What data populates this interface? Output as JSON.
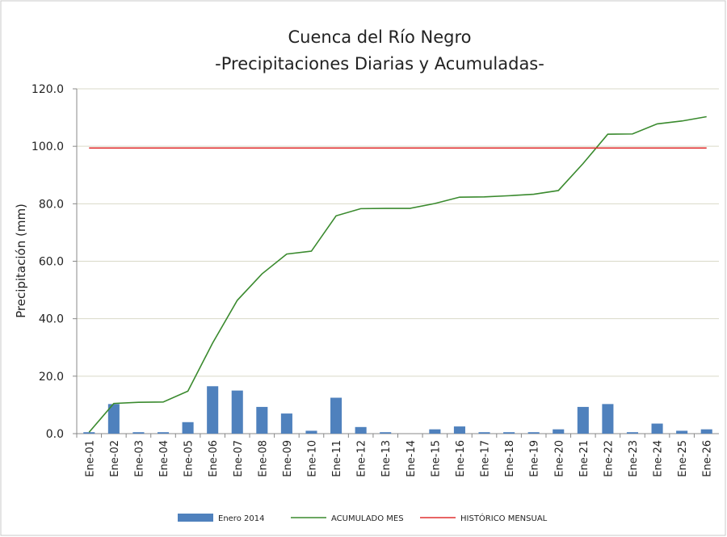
{
  "chart_data": {
    "type": "bar-line",
    "title": "Cuenca del Río Negro",
    "subtitle": "-Precipitaciones Diarias y Acumuladas-",
    "y_label": "Precipitación (mm)",
    "categories": [
      "Ene-01",
      "Ene-02",
      "Ene-03",
      "Ene-04",
      "Ene-05",
      "Ene-06",
      "Ene-07",
      "Ene-08",
      "Ene-09",
      "Ene-10",
      "Ene-11",
      "Ene-12",
      "Ene-13",
      "Ene-14",
      "Ene-15",
      "Ene-16",
      "Ene-17",
      "Ene-18",
      "Ene-19",
      "Ene-20",
      "Ene-21",
      "Ene-22",
      "Ene-23",
      "Ene-24",
      "Ene-25",
      "Ene-26"
    ],
    "series": [
      {
        "name": "Enero 2014",
        "type": "bar",
        "color": "#4f81bd",
        "values": [
          0.5,
          10.3,
          0.5,
          0.5,
          4.0,
          16.5,
          15.0,
          9.3,
          7.0,
          1.0,
          12.5,
          2.3,
          0.5,
          0,
          1.5,
          2.5,
          0.5,
          0.5,
          0.5,
          1.5,
          9.3,
          10.3,
          0.5,
          3.5,
          1.0,
          1.5
        ]
      },
      {
        "name": "ACUMULADO MES",
        "type": "line",
        "color": "#3a8a2e",
        "values": [
          0.5,
          10.5,
          10.9,
          11.0,
          14.8,
          31.5,
          46.4,
          55.6,
          62.5,
          63.5,
          75.8,
          78.3,
          78.4,
          78.4,
          80.1,
          82.3,
          82.4,
          82.8,
          83.3,
          84.6,
          94.0,
          104.2,
          104.3,
          107.8,
          108.8,
          110.3
        ]
      },
      {
        "name": "HISTÓRICO MENSUAL",
        "type": "line",
        "color": "#e03030",
        "values": [
          99.4,
          99.4,
          99.4,
          99.4,
          99.4,
          99.4,
          99.4,
          99.4,
          99.4,
          99.4,
          99.4,
          99.4,
          99.4,
          99.4,
          99.4,
          99.4,
          99.4,
          99.4,
          99.4,
          99.4,
          99.4,
          99.4,
          99.4,
          99.4,
          99.4,
          99.4
        ]
      }
    ],
    "ylim": [
      0,
      120
    ],
    "yticks": [
      {
        "value": 0,
        "label": "0.0"
      },
      {
        "value": 20,
        "label": "20.0"
      },
      {
        "value": 40,
        "label": "40.0"
      },
      {
        "value": 60,
        "label": "60.0"
      },
      {
        "value": 80,
        "label": "80.0"
      },
      {
        "value": 100,
        "label": "100.0"
      },
      {
        "value": 120,
        "label": "120.0"
      }
    ],
    "grid": true,
    "legend": "bottom"
  }
}
